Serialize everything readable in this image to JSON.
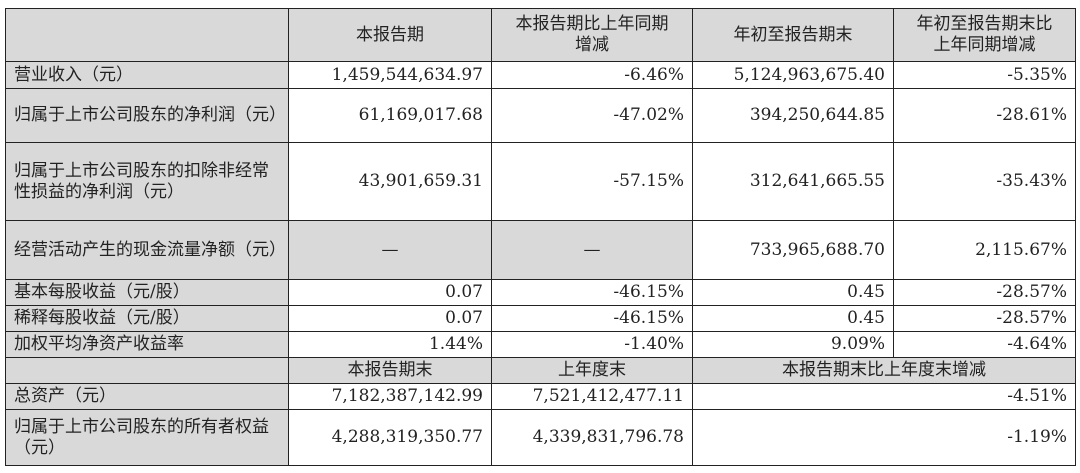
{
  "header": [
    "",
    "本报告期",
    "本报告期比上年同期增减",
    "年初至报告期末",
    "年初至报告期末比上年同期增减"
  ],
  "rows": [
    {
      "label": "营业收入（元）",
      "values": [
        "1,459,544,634.97",
        "-6.46%",
        "5,124,963,675.40",
        "-5.35%"
      ]
    },
    {
      "label": "归属于上市公司股东的净利润（元）",
      "values": [
        "61,169,017.68",
        "-47.02%",
        "394,250,644.85",
        "-28.61%"
      ]
    },
    {
      "label": "归属于上市公司股东的扣除非经常性损益的净利润（元）",
      "values": [
        "43,901,659.31",
        "-57.15%",
        "312,641,665.55",
        "-35.43%"
      ]
    },
    {
      "label": "经营活动产生的现金流量净额（元）",
      "values": [
        "—",
        "—",
        "733,965,688.70",
        "2,115.67%"
      ]
    },
    {
      "label": "基本每股收益（元/股）",
      "values": [
        "0.07",
        "-46.15%",
        "0.45",
        "-28.57%"
      ]
    },
    {
      "label": "稀释每股收益（元/股）",
      "values": [
        "0.07",
        "-46.15%",
        "0.45",
        "-28.57%"
      ]
    },
    {
      "label": "加权平均净资产收益率",
      "values": [
        "1.44%",
        "-1.40%",
        "9.09%",
        "-4.64%"
      ]
    }
  ],
  "header2": [
    "",
    "本报告期末",
    "上年度末",
    "本报告期末比上年度末增减"
  ],
  "rows2": [
    {
      "label": "总资产（元）",
      "values": [
        "7,182,387,142.99",
        "7,521,412,477.11",
        "-4.51%"
      ]
    },
    {
      "label": "归属于上市公司股东的所有者权益（元）",
      "values": [
        "4,288,319,350.77",
        "4,339,831,796.78",
        "-1.19%"
      ]
    }
  ],
  "colors": {
    "shade": "#d9d9d9",
    "border": "#222222"
  }
}
